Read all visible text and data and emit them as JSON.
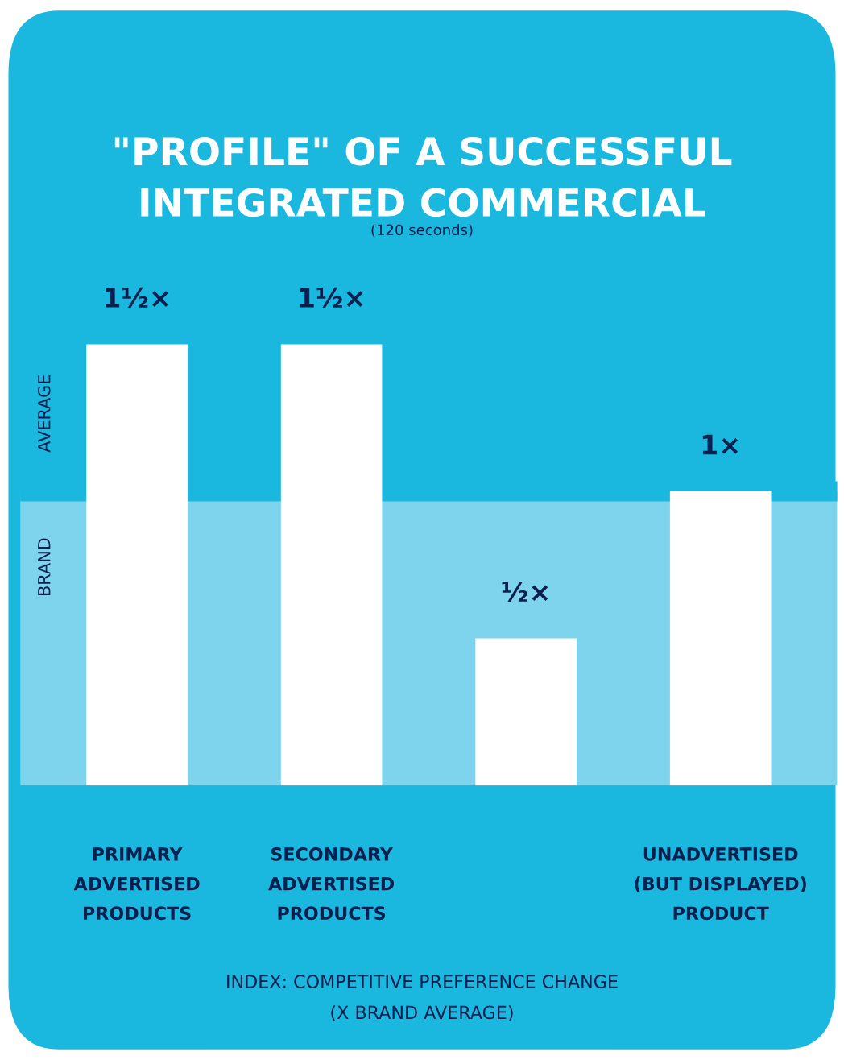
{
  "chart_data": {
    "type": "bar",
    "title": "\"PROFILE\" OF A SUCCESSFUL\nINTEGRATED COMMERCIAL",
    "subtitle": "(120 seconds)",
    "categories": [
      "PRIMARY\nADVERTISED\nPRODUCTS",
      "SECONDARY\nADVERTISED\nPRODUCTS",
      null,
      "UNADVERTISED\n(BUT DISPLAYED)\nPRODUCT"
    ],
    "values": [
      1.5,
      1.5,
      0.5,
      1
    ],
    "value_labels": [
      "1½×",
      "1½×",
      "½×",
      "1×"
    ],
    "color": "#ffffff",
    "ref_lines": [
      {
        "axis": "y",
        "value": 1,
        "color": "#1ab8df"
      }
    ],
    "bands": [
      {
        "axis": "y",
        "from": 0,
        "to": 1,
        "color": "#7dd4ec"
      }
    ],
    "annotations": [
      "AVERAGE",
      "BRAND",
      "INDEX: COMPETITIVE PREFERENCE CHANGE\n(X BRAND AVERAGE)"
    ],
    "grid": false,
    "legend": false
  }
}
